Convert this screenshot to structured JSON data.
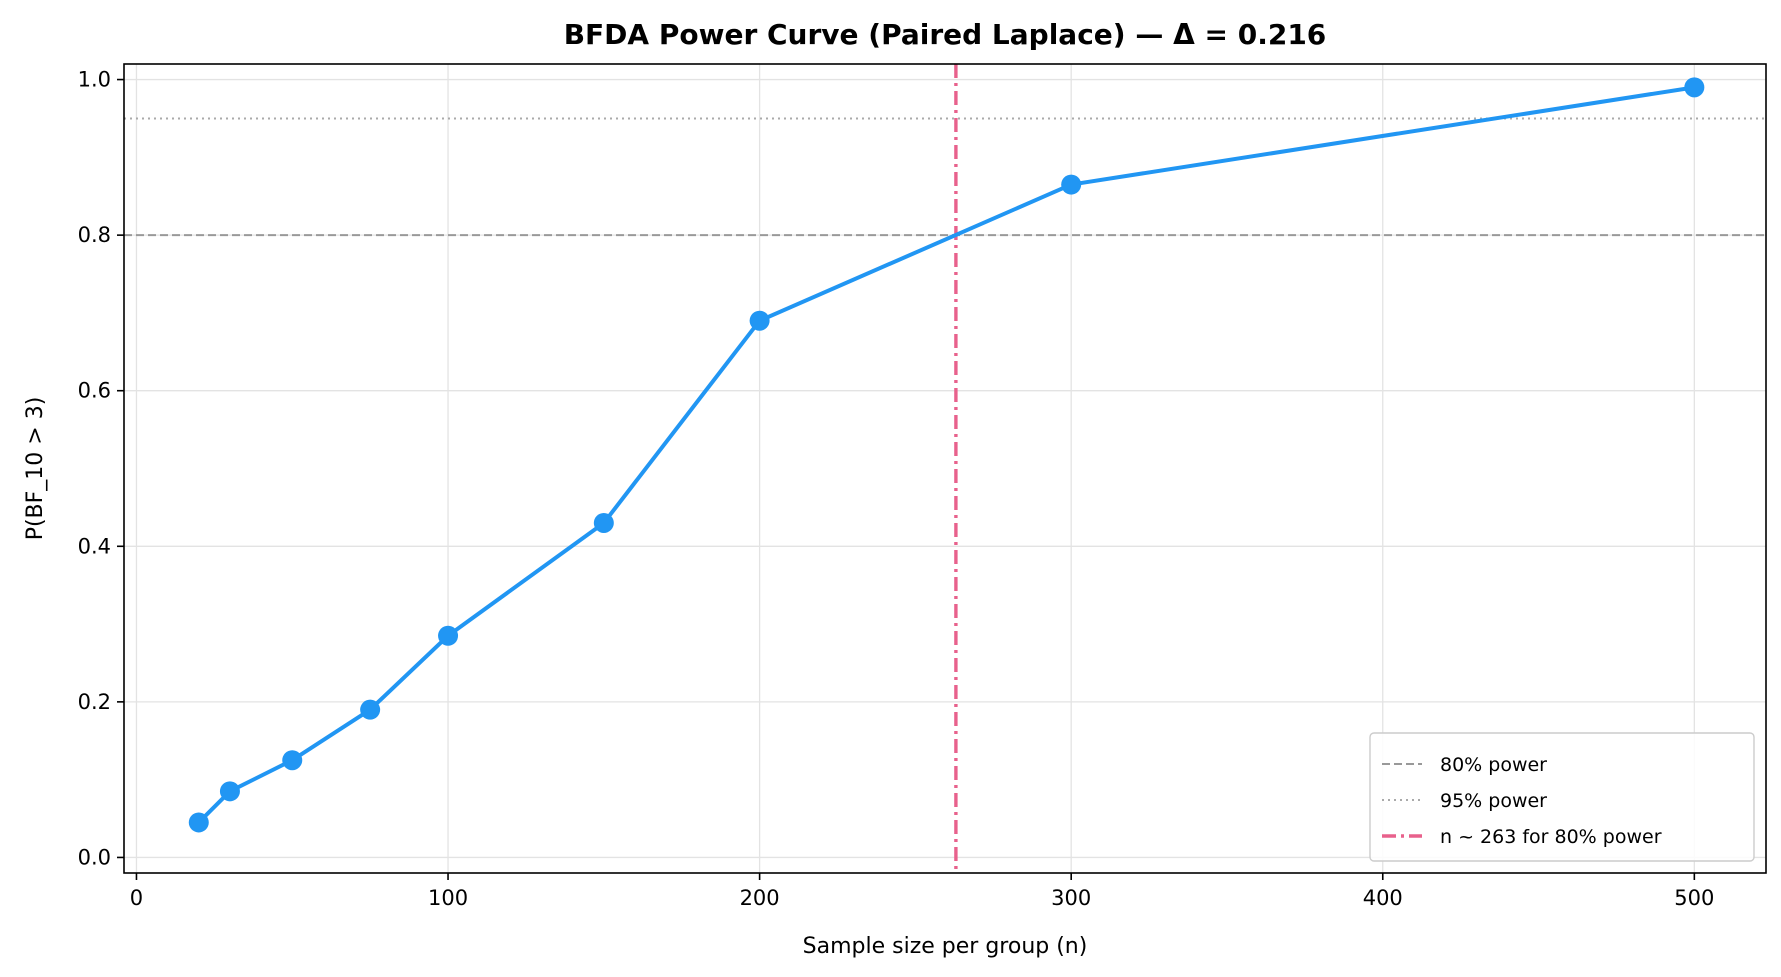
{
  "chart_data": {
    "type": "line",
    "title": "BFDA Power Curve (Paired Laplace) — Δ = 0.216",
    "xlabel": "Sample size per group (n)",
    "ylabel": "P(BF_10 > 3)",
    "xlim": [
      -4,
      523
    ],
    "ylim": [
      -0.02,
      1.02
    ],
    "xticks": [
      0,
      100,
      200,
      300,
      400,
      500
    ],
    "yticks": [
      0.0,
      0.2,
      0.4,
      0.6,
      0.8,
      1.0
    ],
    "grid": true,
    "series": [
      {
        "x": [
          20,
          30,
          50,
          75,
          100,
          150,
          200,
          300,
          500
        ],
        "y": [
          0.045,
          0.085,
          0.125,
          0.19,
          0.285,
          0.43,
          0.69,
          0.865,
          0.99
        ],
        "color": "#2196F3"
      }
    ],
    "reference_lines": [
      {
        "orientation": "horizontal",
        "value": 0.8,
        "style": "dashed",
        "color": "#999999",
        "label": "80% power"
      },
      {
        "orientation": "horizontal",
        "value": 0.95,
        "style": "dotted",
        "color": "#aaaaaa",
        "label": "95% power"
      },
      {
        "orientation": "vertical",
        "value": 263,
        "style": "dashdot",
        "color": "#E8618C",
        "label": "n ~ 263 for 80% power"
      }
    ],
    "legend_position": "bottom-right"
  }
}
